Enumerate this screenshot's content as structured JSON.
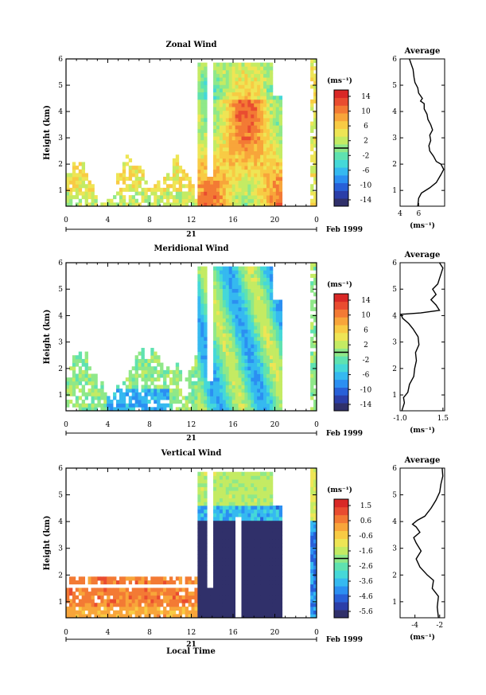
{
  "figure": {
    "date_label": "Feb 1999",
    "day_label": "21",
    "xlabel": "Local Time"
  },
  "chart_data": [
    {
      "type": "heatmap",
      "title": "Zonal Wind",
      "ylabel": "Height (km)",
      "xlabel": "Local Time",
      "x_ticks": [
        "0",
        "4",
        "8",
        "12",
        "16",
        "20",
        "0"
      ],
      "y_ticks": [
        "1",
        "2",
        "3",
        "4",
        "5",
        "6"
      ],
      "xlim": [
        0,
        24
      ],
      "ylim": [
        0.4,
        6.0
      ],
      "colorbar": {
        "unit": "(ms⁻¹)",
        "ticks": [
          "14",
          "10",
          "6",
          "2",
          "-2",
          "-6",
          "-10",
          "-14"
        ],
        "range": [
          -16,
          16
        ]
      },
      "profile": {
        "title": "Average",
        "xlabel": "(ms⁻¹)",
        "x_ticks": [
          "4",
          "6"
        ],
        "xlim": [
          4,
          8.8
        ],
        "points": [
          [
            5.9,
            0.4
          ],
          [
            6.0,
            0.7
          ],
          [
            6.3,
            0.9
          ],
          [
            7.2,
            1.1
          ],
          [
            7.9,
            1.3
          ],
          [
            8.4,
            1.6
          ],
          [
            8.7,
            1.8
          ],
          [
            8.4,
            2.0
          ],
          [
            7.9,
            2.1
          ],
          [
            7.6,
            2.3
          ],
          [
            7.2,
            2.5
          ],
          [
            7.1,
            2.7
          ],
          [
            7.3,
            2.9
          ],
          [
            7.2,
            3.1
          ],
          [
            7.5,
            3.3
          ],
          [
            7.3,
            3.5
          ],
          [
            7.0,
            3.7
          ],
          [
            6.9,
            3.9
          ],
          [
            6.6,
            4.1
          ],
          [
            6.6,
            4.3
          ],
          [
            6.2,
            4.4
          ],
          [
            6.4,
            4.5
          ],
          [
            6.0,
            4.7
          ],
          [
            5.9,
            4.9
          ],
          [
            5.6,
            5.1
          ],
          [
            5.5,
            5.3
          ],
          [
            5.4,
            5.6
          ],
          [
            5.2,
            5.8
          ],
          [
            5.0,
            6.0
          ]
        ]
      }
    },
    {
      "type": "heatmap",
      "title": "Meridional Wind",
      "ylabel": "Height (km)",
      "xlabel": "Local Time",
      "x_ticks": [
        "0",
        "4",
        "8",
        "12",
        "16",
        "20",
        "0"
      ],
      "y_ticks": [
        "1",
        "2",
        "3",
        "4",
        "5",
        "6"
      ],
      "xlim": [
        0,
        24
      ],
      "ylim": [
        0.4,
        6.0
      ],
      "colorbar": {
        "unit": "(ms⁻¹)",
        "ticks": [
          "14",
          "10",
          "6",
          "2",
          "-2",
          "-6",
          "-10",
          "-14"
        ],
        "range": [
          -16,
          16
        ]
      },
      "profile": {
        "title": "Average",
        "xlabel": "(ms⁻¹)",
        "x_ticks": [
          "-1.0",
          "1.5"
        ],
        "xlim": [
          -1.0,
          1.6
        ],
        "points": [
          [
            -0.9,
            0.4
          ],
          [
            -0.75,
            0.7
          ],
          [
            -0.8,
            0.9
          ],
          [
            -0.55,
            1.1
          ],
          [
            -0.45,
            1.4
          ],
          [
            -0.2,
            1.7
          ],
          [
            -0.15,
            2.0
          ],
          [
            -0.05,
            2.3
          ],
          [
            -0.1,
            2.6
          ],
          [
            0.1,
            2.9
          ],
          [
            0.05,
            3.2
          ],
          [
            -0.25,
            3.5
          ],
          [
            -0.5,
            3.7
          ],
          [
            -0.85,
            3.9
          ],
          [
            -0.95,
            4.05
          ],
          [
            0.2,
            4.1
          ],
          [
            1.3,
            4.2
          ],
          [
            1.1,
            4.4
          ],
          [
            0.8,
            4.6
          ],
          [
            1.1,
            4.8
          ],
          [
            0.9,
            5.0
          ],
          [
            1.2,
            5.2
          ],
          [
            1.3,
            5.4
          ],
          [
            1.4,
            5.6
          ],
          [
            1.5,
            5.8
          ],
          [
            1.3,
            6.0
          ]
        ]
      }
    },
    {
      "type": "heatmap",
      "title": "Vertical Wind",
      "ylabel": "Height (km)",
      "xlabel": "Local Time",
      "x_ticks": [
        "0",
        "4",
        "8",
        "12",
        "16",
        "20",
        "0"
      ],
      "y_ticks": [
        "1",
        "2",
        "3",
        "4",
        "5",
        "6"
      ],
      "xlim": [
        0,
        24
      ],
      "ylim": [
        0.4,
        6.0
      ],
      "colorbar": {
        "unit": "(ms⁻¹)",
        "ticks": [
          "1.5",
          "0.6",
          "-0.6",
          "-1.6",
          "-2.6",
          "-3.6",
          "-4.6",
          "-5.6"
        ],
        "range": [
          -6.1,
          2.0
        ]
      },
      "profile": {
        "title": "Average",
        "xlabel": "(ms⁻¹)",
        "x_ticks": [
          "-4",
          "-2"
        ],
        "xlim": [
          -5.2,
          -1.6
        ],
        "points": [
          [
            -2.1,
            0.4
          ],
          [
            -2.2,
            0.8
          ],
          [
            -2.1,
            1.2
          ],
          [
            -2.6,
            1.5
          ],
          [
            -2.5,
            1.8
          ],
          [
            -3.0,
            2.0
          ],
          [
            -3.6,
            2.3
          ],
          [
            -3.9,
            2.6
          ],
          [
            -3.5,
            2.9
          ],
          [
            -3.9,
            3.2
          ],
          [
            -4.1,
            3.4
          ],
          [
            -3.6,
            3.6
          ],
          [
            -3.9,
            3.8
          ],
          [
            -4.2,
            3.9
          ],
          [
            -3.8,
            4.05
          ],
          [
            -3.2,
            4.2
          ],
          [
            -2.7,
            4.5
          ],
          [
            -2.3,
            4.8
          ],
          [
            -2.0,
            5.1
          ],
          [
            -1.9,
            5.4
          ],
          [
            -1.75,
            5.7
          ],
          [
            -1.8,
            6.0
          ]
        ]
      }
    }
  ]
}
